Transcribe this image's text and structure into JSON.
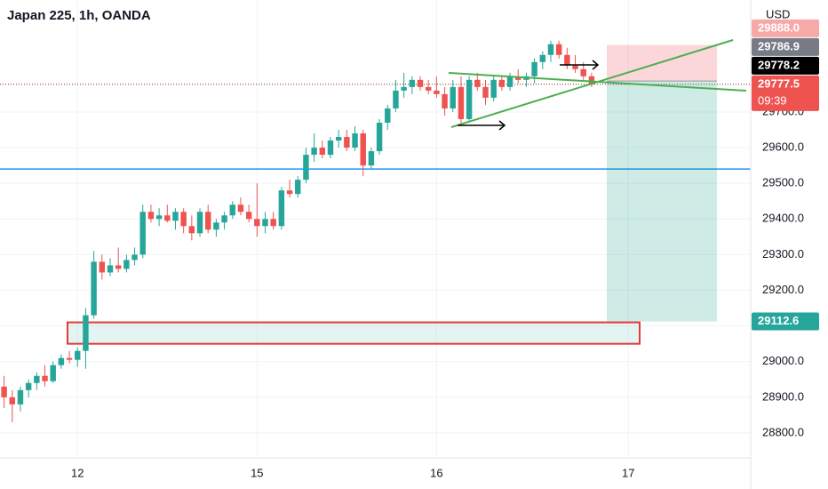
{
  "chart_data": {
    "type": "candlestick",
    "title": "Japan 225, 1h, OANDA",
    "currency": "USD",
    "up_color": "#26a69a",
    "down_color": "#ef5350",
    "grid": true,
    "xlim": [
      -0.5,
      91.5
    ],
    "xticks": [
      {
        "value": 9,
        "label": "12"
      },
      {
        "value": 31,
        "label": "15"
      },
      {
        "value": 53,
        "label": "16"
      },
      {
        "value": 76.5,
        "label": "17"
      }
    ],
    "ylim": [
      28730,
      30014
    ],
    "yticks": [
      {
        "value": 28800,
        "label": "28800.0"
      },
      {
        "value": 28900,
        "label": "28900.0"
      },
      {
        "value": 29000,
        "label": "29000.0"
      },
      {
        "value": 29100,
        "label": "29100.0"
      },
      {
        "value": 29200,
        "label": "29200.0"
      },
      {
        "value": 29300,
        "label": "29300.0"
      },
      {
        "value": 29400,
        "label": "29400.0"
      },
      {
        "value": 29500,
        "label": "29500.0"
      },
      {
        "value": 29600,
        "label": "29600.0"
      },
      {
        "value": 29700,
        "label": "29700.0"
      }
    ],
    "open": [
      28930,
      28900,
      28880,
      28920,
      28940,
      28960,
      28945,
      28990,
      29010,
      29005,
      29030,
      29130,
      29280,
      29250,
      29270,
      29260,
      29285,
      29300,
      29420,
      29400,
      29410,
      29395,
      29420,
      29380,
      29360,
      29420,
      29370,
      29390,
      29410,
      29440,
      29420,
      29400,
      29380,
      29400,
      29380,
      29480,
      29470,
      29510,
      29580,
      29600,
      29580,
      29620,
      29630,
      29600,
      29640,
      29550,
      29590,
      29670,
      29710,
      29760,
      29770,
      29790,
      29770,
      29760,
      29750,
      29710,
      29770,
      29680,
      29790,
      29770,
      29740,
      29790,
      29770,
      29800,
      29790,
      29800,
      29840,
      29860,
      29890,
      29860,
      29830,
      29820,
      29800
    ],
    "high": [
      28960,
      28920,
      28930,
      28950,
      28970,
      28990,
      29000,
      29020,
      29030,
      29040,
      29150,
      29310,
      29300,
      29290,
      29320,
      29300,
      29320,
      29440,
      29440,
      29430,
      29440,
      29430,
      29430,
      29410,
      29430,
      29440,
      29400,
      29420,
      29450,
      29460,
      29440,
      29500,
      29420,
      29420,
      29490,
      29510,
      29520,
      29600,
      29640,
      29620,
      29630,
      29650,
      29650,
      29660,
      29650,
      29600,
      29680,
      29720,
      29790,
      29810,
      29800,
      29800,
      29790,
      29800,
      29770,
      29790,
      29800,
      29800,
      29810,
      29790,
      29800,
      29800,
      29810,
      29820,
      29810,
      29850,
      29870,
      29900,
      29900,
      29880,
      29860,
      29840,
      29810
    ],
    "low": [
      28870,
      28830,
      28860,
      28900,
      28920,
      28930,
      28940,
      28980,
      28995,
      28985,
      28980,
      29120,
      29230,
      29240,
      29250,
      29250,
      29270,
      29290,
      29390,
      29380,
      29390,
      29370,
      29360,
      29340,
      29350,
      29360,
      29350,
      29370,
      29400,
      29410,
      29390,
      29350,
      29360,
      29370,
      29370,
      29460,
      29460,
      29500,
      29560,
      29570,
      29570,
      29600,
      29590,
      29590,
      29520,
      29540,
      29580,
      29650,
      29700,
      29740,
      29750,
      29760,
      29750,
      29740,
      29690,
      29700,
      29660,
      29670,
      29760,
      29720,
      29730,
      29760,
      29760,
      29780,
      29770,
      29780,
      29820,
      29840,
      29850,
      29820,
      29810,
      29790,
      29770
    ],
    "close": [
      28900,
      28880,
      28920,
      28940,
      28960,
      28945,
      28990,
      29010,
      29005,
      29030,
      29130,
      29280,
      29250,
      29270,
      29260,
      29285,
      29300,
      29420,
      29400,
      29410,
      29395,
      29420,
      29380,
      29360,
      29420,
      29370,
      29390,
      29410,
      29440,
      29420,
      29400,
      29380,
      29400,
      29380,
      29480,
      29470,
      29510,
      29580,
      29600,
      29580,
      29620,
      29630,
      29600,
      29640,
      29550,
      29590,
      29670,
      29710,
      29760,
      29770,
      29790,
      29770,
      29760,
      29750,
      29710,
      29770,
      29680,
      29790,
      29770,
      29740,
      29790,
      29770,
      29800,
      29790,
      29800,
      29840,
      29860,
      29890,
      29860,
      29830,
      29820,
      29800,
      29777.5
    ],
    "hlines": [
      {
        "value": 29540,
        "color": "#2196f3"
      }
    ],
    "zone": {
      "low": 29050,
      "high": 29110,
      "color": "#e53935"
    },
    "price_labels": [
      {
        "value": 29888,
        "label": "29888.0",
        "color": "#f7a9a8"
      },
      {
        "value": 29786.9,
        "label": "29786.9",
        "color": "#787b86"
      },
      {
        "value": 29778.2,
        "label": "29778.2",
        "color": "#000000"
      },
      {
        "value": 29777.5,
        "label": "29777.5",
        "color": "#ef5350",
        "countdown": "09:39"
      },
      {
        "value": 29112.6,
        "label": "29112.6",
        "color": "#26a69a"
      }
    ]
  }
}
